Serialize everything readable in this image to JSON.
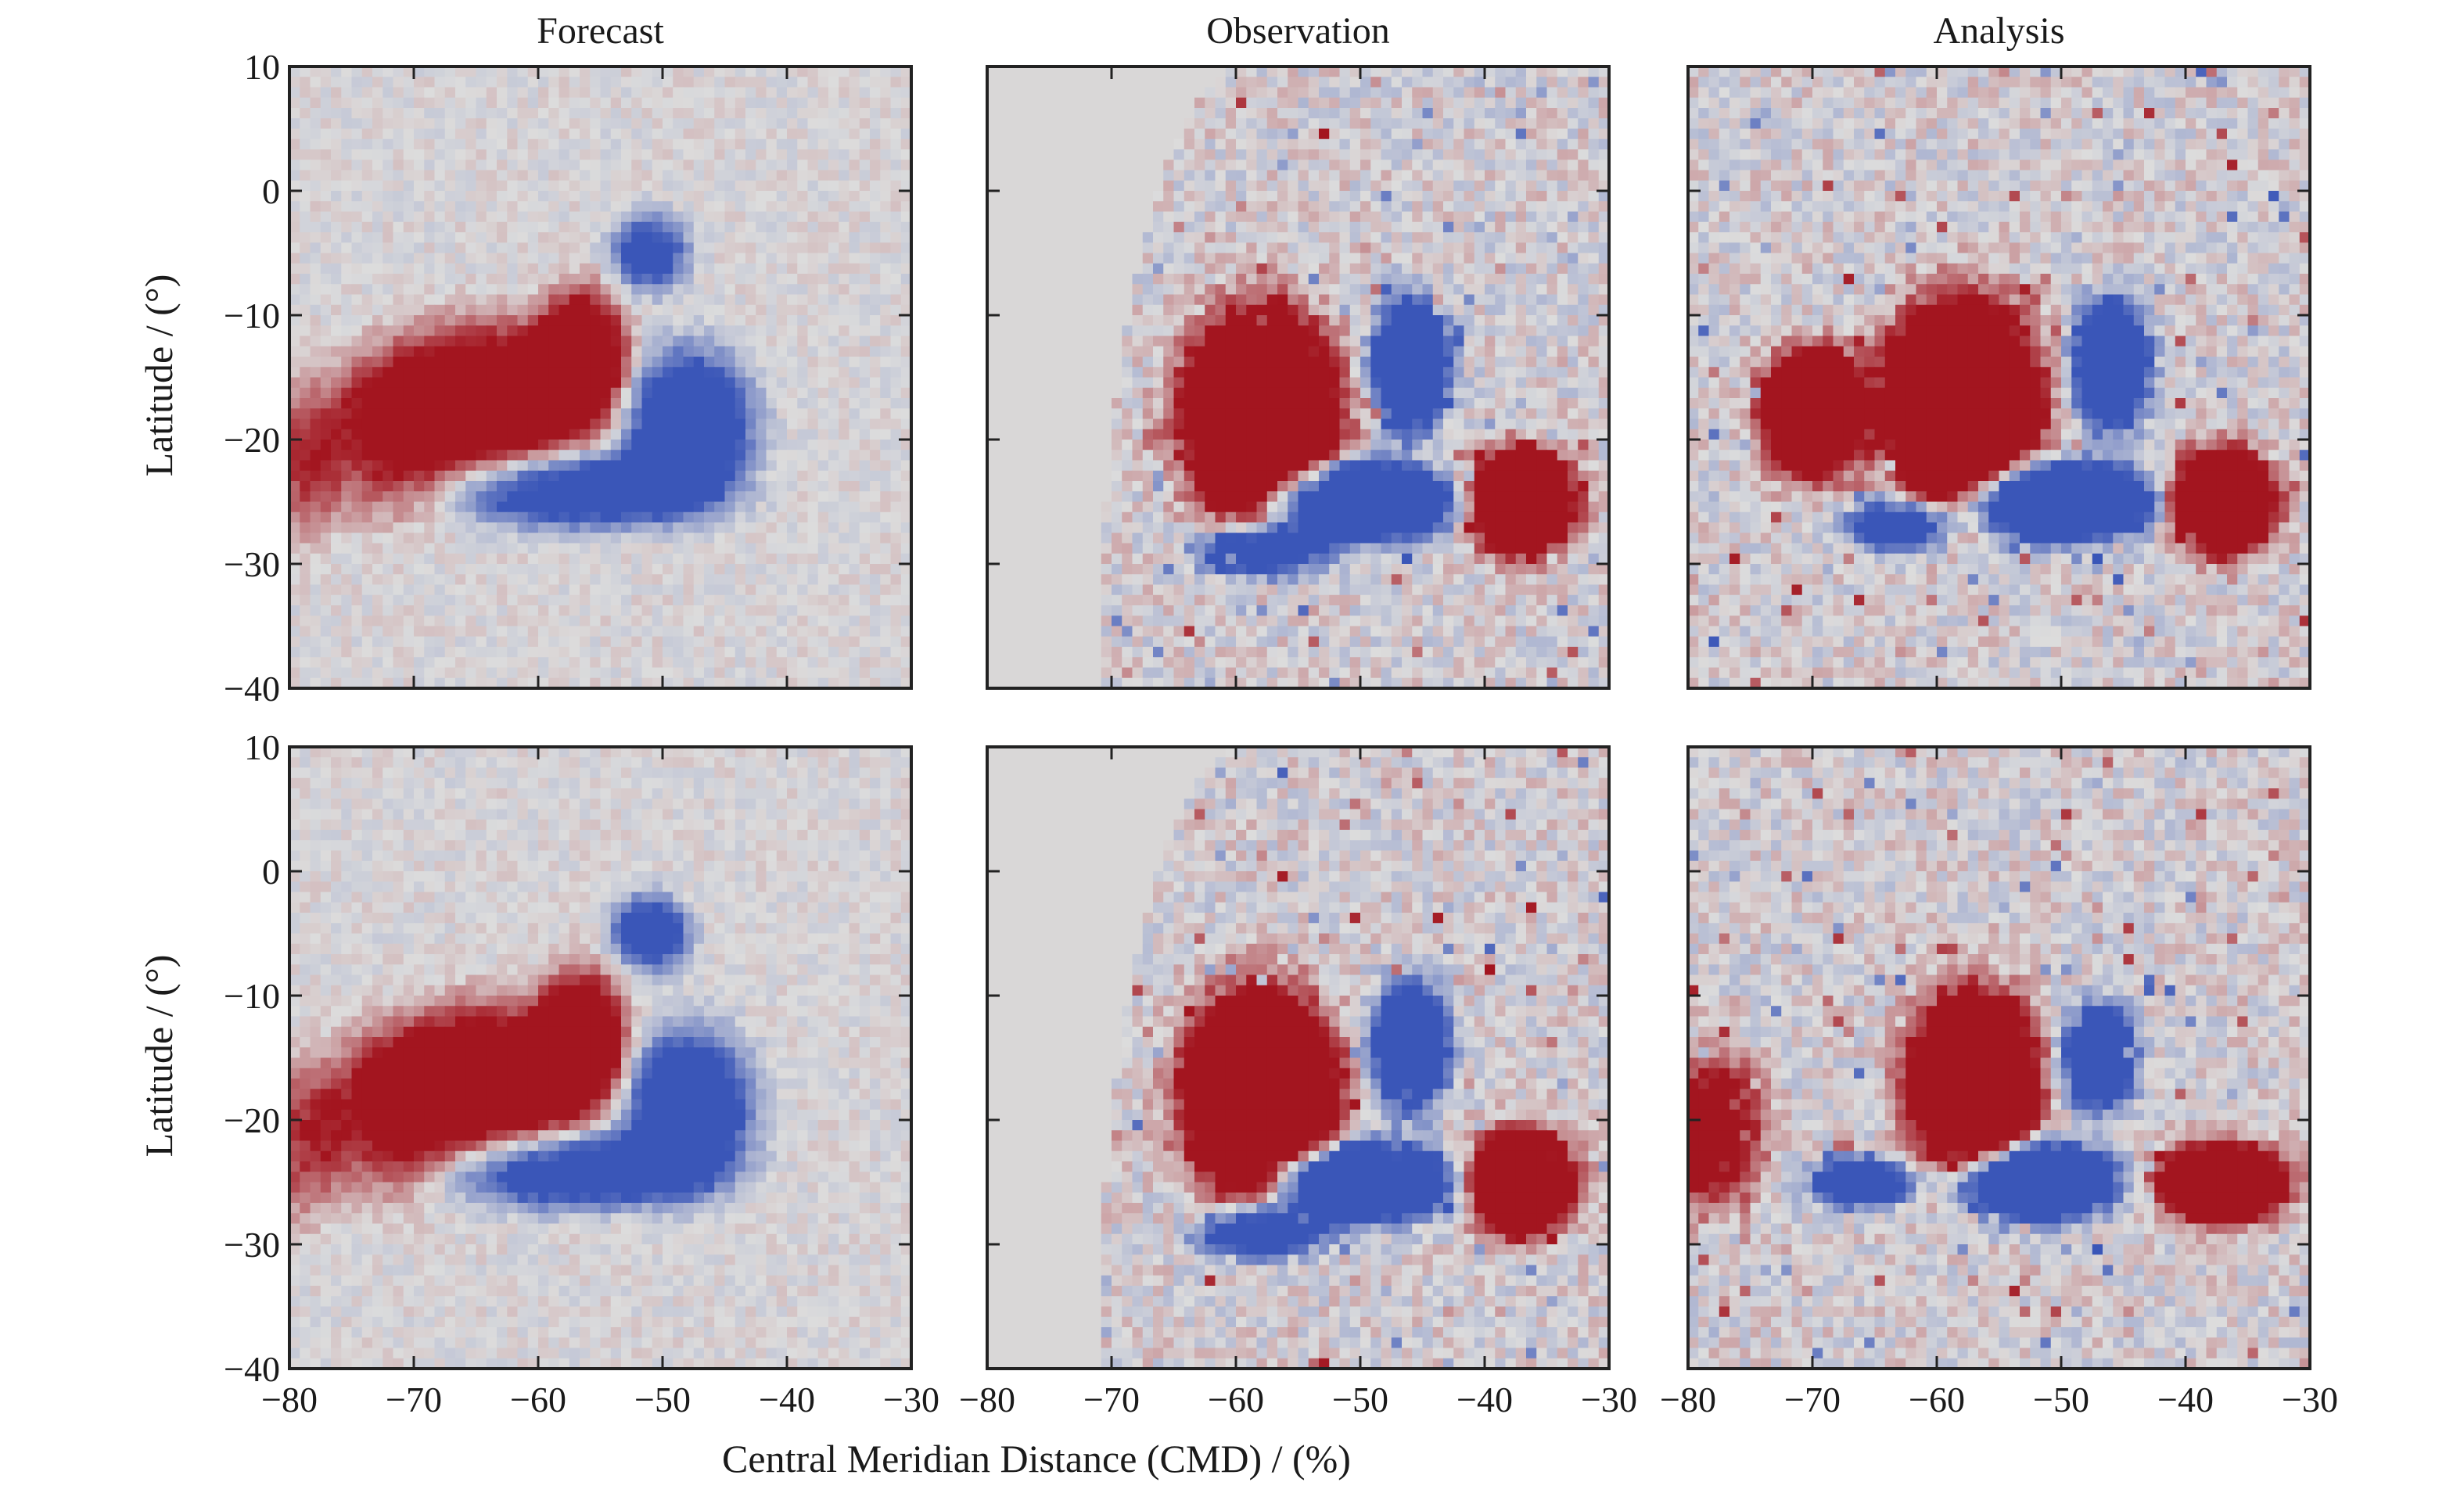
{
  "figure": {
    "xlabel": "Central Meridian Distance (CMD) / (%)",
    "ylabel": "Latitude / (°)"
  },
  "colors": {
    "positive_strong": "#a3151f",
    "negative_strong": "#3a56b8",
    "neutral": "#dcdcdc",
    "no_data": "#d9d7d7"
  },
  "chart_data": [
    {
      "type": "heatmap",
      "row": 0,
      "col": 0,
      "title": "Forecast",
      "xlim": [
        -80,
        -30
      ],
      "ylim": [
        -40,
        10
      ],
      "x_ticks": [
        -80,
        -70,
        -60,
        -50,
        -40,
        -30
      ],
      "y_ticks": [
        10,
        0,
        -10,
        -20,
        -30,
        -40
      ],
      "features": [
        {
          "sign": "positive",
          "cx": -64,
          "cy": -17,
          "rx": 9,
          "ry": 6,
          "strength": 1.0
        },
        {
          "sign": "positive",
          "cx": -56.5,
          "cy": -13,
          "rx": 3.5,
          "ry": 5,
          "strength": 0.9
        },
        {
          "sign": "positive",
          "cx": -72,
          "cy": -20,
          "rx": 6,
          "ry": 6,
          "strength": 0.5
        },
        {
          "sign": "positive",
          "cx": -79,
          "cy": -22,
          "rx": 3,
          "ry": 6,
          "strength": 0.4
        },
        {
          "sign": "negative",
          "cx": -48,
          "cy": -19,
          "rx": 5,
          "ry": 6,
          "strength": 1.0
        },
        {
          "sign": "negative",
          "cx": -57,
          "cy": -24,
          "rx": 10,
          "ry": 3,
          "strength": 0.9
        },
        {
          "sign": "negative",
          "cx": -51,
          "cy": -5,
          "rx": 3,
          "ry": 3,
          "strength": 0.7
        }
      ]
    },
    {
      "type": "heatmap",
      "row": 0,
      "col": 1,
      "title": "Observation",
      "xlim": [
        -80,
        -30
      ],
      "ylim": [
        -40,
        10
      ],
      "x_ticks": [
        -80,
        -70,
        -60,
        -50,
        -40,
        -30
      ],
      "y_ticks": [
        10,
        0,
        -10,
        -20,
        -30,
        -40
      ],
      "features": [
        {
          "sign": "positive",
          "cx": -58,
          "cy": -18,
          "rx": 6,
          "ry": 8,
          "strength": 1.0
        },
        {
          "sign": "positive",
          "cx": -37,
          "cy": -25,
          "rx": 4,
          "ry": 4,
          "strength": 1.0
        },
        {
          "sign": "negative",
          "cx": -50,
          "cy": -25,
          "rx": 7,
          "ry": 3,
          "strength": 1.0
        },
        {
          "sign": "negative",
          "cx": -46,
          "cy": -14,
          "rx": 3,
          "ry": 5,
          "strength": 0.8
        },
        {
          "sign": "negative",
          "cx": -58,
          "cy": -29,
          "rx": 5,
          "ry": 2,
          "strength": 0.6
        }
      ]
    },
    {
      "type": "heatmap",
      "row": 0,
      "col": 2,
      "title": "Analysis",
      "xlim": [
        -80,
        -30
      ],
      "ylim": [
        -40,
        10
      ],
      "x_ticks": [
        -80,
        -70,
        -60,
        -50,
        -40,
        -30
      ],
      "y_ticks": [
        10,
        0,
        -10,
        -20,
        -30,
        -40
      ],
      "features": [
        {
          "sign": "positive",
          "cx": -58,
          "cy": -17,
          "rx": 6,
          "ry": 8,
          "strength": 1.0
        },
        {
          "sign": "positive",
          "cx": -70,
          "cy": -18,
          "rx": 4,
          "ry": 5,
          "strength": 0.9
        },
        {
          "sign": "positive",
          "cx": -37,
          "cy": -25,
          "rx": 4,
          "ry": 4,
          "strength": 1.0
        },
        {
          "sign": "negative",
          "cx": -50,
          "cy": -25,
          "rx": 7,
          "ry": 3,
          "strength": 1.0
        },
        {
          "sign": "negative",
          "cx": -46,
          "cy": -14,
          "rx": 3,
          "ry": 5,
          "strength": 0.8
        },
        {
          "sign": "negative",
          "cx": -63,
          "cy": -27,
          "rx": 4,
          "ry": 2,
          "strength": 0.6
        }
      ]
    },
    {
      "type": "heatmap",
      "row": 1,
      "col": 0,
      "xlim": [
        -80,
        -30
      ],
      "ylim": [
        -40,
        10
      ],
      "x_ticks": [
        -80,
        -70,
        -60,
        -50,
        -40,
        -30
      ],
      "y_ticks": [
        10,
        0,
        -10,
        -20,
        -30,
        -40
      ],
      "features": [
        {
          "sign": "positive",
          "cx": -64,
          "cy": -17,
          "rx": 9,
          "ry": 6,
          "strength": 1.0
        },
        {
          "sign": "positive",
          "cx": -56.5,
          "cy": -13,
          "rx": 3.5,
          "ry": 5,
          "strength": 0.9
        },
        {
          "sign": "positive",
          "cx": -72,
          "cy": -20,
          "rx": 6,
          "ry": 6,
          "strength": 0.5
        },
        {
          "sign": "positive",
          "cx": -79,
          "cy": -22,
          "rx": 3,
          "ry": 6,
          "strength": 0.4
        },
        {
          "sign": "negative",
          "cx": -48,
          "cy": -19,
          "rx": 5,
          "ry": 6,
          "strength": 1.0
        },
        {
          "sign": "negative",
          "cx": -57,
          "cy": -24,
          "rx": 10,
          "ry": 3,
          "strength": 0.9
        },
        {
          "sign": "negative",
          "cx": -51,
          "cy": -5,
          "rx": 3,
          "ry": 3,
          "strength": 0.8
        }
      ]
    },
    {
      "type": "heatmap",
      "row": 1,
      "col": 1,
      "xlim": [
        -80,
        -30
      ],
      "ylim": [
        -40,
        10
      ],
      "x_ticks": [
        -80,
        -70,
        -60,
        -50,
        -40,
        -30
      ],
      "y_ticks": [
        10,
        0,
        -10,
        -20,
        -30,
        -40
      ],
      "features": [
        {
          "sign": "positive",
          "cx": -58,
          "cy": -18,
          "rx": 6,
          "ry": 8,
          "strength": 1.0
        },
        {
          "sign": "positive",
          "cx": -37,
          "cy": -25,
          "rx": 4,
          "ry": 4,
          "strength": 1.0
        },
        {
          "sign": "negative",
          "cx": -50,
          "cy": -25,
          "rx": 7,
          "ry": 3,
          "strength": 1.0
        },
        {
          "sign": "negative",
          "cx": -46,
          "cy": -14,
          "rx": 3,
          "ry": 5,
          "strength": 0.8
        },
        {
          "sign": "negative",
          "cx": -58,
          "cy": -29,
          "rx": 5,
          "ry": 2,
          "strength": 0.6
        }
      ]
    },
    {
      "type": "heatmap",
      "row": 1,
      "col": 2,
      "xlim": [
        -80,
        -30
      ],
      "ylim": [
        -40,
        10
      ],
      "x_ticks": [
        -80,
        -70,
        -60,
        -50,
        -40,
        -30
      ],
      "y_ticks": [
        10,
        0,
        -10,
        -20,
        -30,
        -40
      ],
      "features": [
        {
          "sign": "positive",
          "cx": -57,
          "cy": -17,
          "rx": 5,
          "ry": 7,
          "strength": 1.0
        },
        {
          "sign": "positive",
          "cx": -37,
          "cy": -25,
          "rx": 5,
          "ry": 3,
          "strength": 1.0
        },
        {
          "sign": "positive",
          "cx": -78,
          "cy": -21,
          "rx": 4,
          "ry": 6,
          "strength": 0.5
        },
        {
          "sign": "negative",
          "cx": -52,
          "cy": -25,
          "rx": 6,
          "ry": 3,
          "strength": 1.0
        },
        {
          "sign": "negative",
          "cx": -47,
          "cy": -15,
          "rx": 3,
          "ry": 4,
          "strength": 0.7
        },
        {
          "sign": "negative",
          "cx": -66,
          "cy": -25,
          "rx": 4,
          "ry": 2,
          "strength": 0.6
        }
      ]
    }
  ]
}
